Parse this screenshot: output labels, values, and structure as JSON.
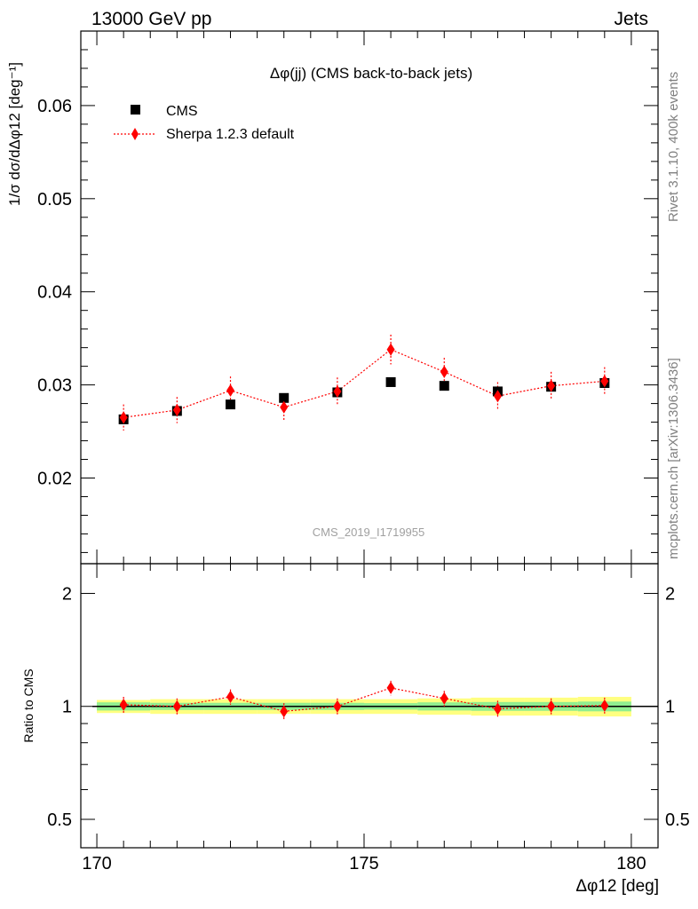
{
  "header": {
    "left": "13000 GeV pp",
    "right": "Jets"
  },
  "plot_title": "Δφ(jj) (CMS back-to-back jets)",
  "side_labels": {
    "rivet": "Rivet 3.1.10,  400k events",
    "site": "mcplots.cern.ch [arXiv:1306.3436]"
  },
  "watermark": "CMS_2019_I1719955",
  "ylabel_main": "1/σ dσ/dΔφ12 [deg⁻¹]",
  "ylabel_ratio": "Ratio to CMS",
  "xlabel": "Δφ12 [deg]",
  "legend": {
    "data": "CMS",
    "mc": "Sherpa 1.2.3 default"
  },
  "colors": {
    "data": "#000000",
    "mc": "#ff0000",
    "band_inner": "#90ee90",
    "band_outer": "#ffff80"
  },
  "chart_data": [
    {
      "type": "scatter",
      "panel": "main",
      "x": [
        170.5,
        171.5,
        172.5,
        173.5,
        174.5,
        175.5,
        176.5,
        177.5,
        178.5,
        179.5
      ],
      "series": [
        {
          "name": "CMS",
          "values": [
            0.0263,
            0.0272,
            0.0279,
            0.0286,
            0.0292,
            0.0303,
            0.0299,
            0.0293,
            0.0298,
            0.0302
          ],
          "errors": [
            0.0004,
            0.0004,
            0.0004,
            0.0004,
            0.0004,
            0.0004,
            0.0004,
            0.0004,
            0.0004,
            0.0004
          ]
        },
        {
          "name": "Sherpa 1.2.3 default",
          "values": [
            0.0265,
            0.0273,
            0.0294,
            0.0276,
            0.0293,
            0.0338,
            0.0314,
            0.0288,
            0.0299,
            0.0304
          ],
          "errors": [
            0.0014,
            0.0014,
            0.0015,
            0.0015,
            0.0015,
            0.0016,
            0.0015,
            0.0015,
            0.0015,
            0.0015
          ]
        }
      ],
      "xlim": [
        169.7,
        180.5
      ],
      "ylim": [
        0.0108,
        0.068
      ],
      "yticks": [
        "0.02",
        "0.03",
        "0.04",
        "0.05",
        "0.06"
      ]
    },
    {
      "type": "scatter",
      "panel": "ratio",
      "x": [
        170.5,
        171.5,
        172.5,
        173.5,
        174.5,
        175.5,
        176.5,
        177.5,
        178.5,
        179.5
      ],
      "series": [
        {
          "name": "Sherpa 1.2.3 default",
          "values": [
            1.01,
            1.0,
            1.06,
            0.97,
            1.0,
            1.12,
            1.05,
            0.985,
            1.0,
            1.005
          ],
          "errors": [
            0.05,
            0.05,
            0.05,
            0.05,
            0.05,
            0.05,
            0.05,
            0.05,
            0.05,
            0.05
          ]
        }
      ],
      "band_inner": [
        0.025,
        0.022,
        0.022,
        0.022,
        0.022,
        0.02,
        0.025,
        0.027,
        0.027,
        0.03
      ],
      "band_outer": [
        0.04,
        0.045,
        0.045,
        0.045,
        0.045,
        0.045,
        0.05,
        0.055,
        0.055,
        0.06
      ],
      "xlim": [
        169.7,
        180.5
      ],
      "ylim": [
        0.42,
        2.4
      ],
      "log_y": true,
      "yticks": [
        "0.5",
        "1",
        "2"
      ],
      "xticks": [
        "170",
        "175",
        "180"
      ]
    }
  ]
}
